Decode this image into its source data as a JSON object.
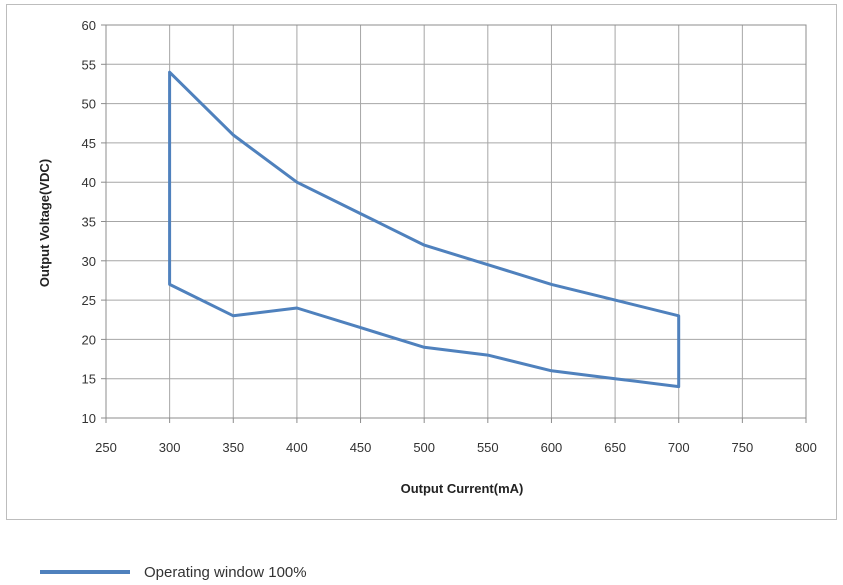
{
  "chart_data": {
    "type": "line",
    "title": "",
    "xlabel": "Output Current(mA)",
    "ylabel": "Output Voltage(VDC)",
    "xlim": [
      250,
      800
    ],
    "ylim": [
      10,
      60
    ],
    "x_ticks": [
      250,
      300,
      350,
      400,
      450,
      500,
      550,
      600,
      650,
      700,
      750,
      800
    ],
    "y_ticks": [
      10,
      15,
      20,
      25,
      30,
      35,
      40,
      45,
      50,
      55,
      60
    ],
    "grid": true,
    "legend_placement": "bottom-left",
    "series": [
      {
        "name": "Operating window 100%",
        "color": "#4f81bd",
        "closed": true,
        "x": [
          300,
          350,
          400,
          450,
          500,
          550,
          600,
          650,
          700,
          700,
          650,
          600,
          550,
          500,
          450,
          400,
          350,
          300,
          300
        ],
        "y": [
          54,
          46,
          40,
          36,
          32,
          29.5,
          27,
          25,
          23,
          14,
          15,
          16,
          18,
          19,
          21.5,
          24,
          23,
          27,
          54
        ]
      }
    ]
  }
}
